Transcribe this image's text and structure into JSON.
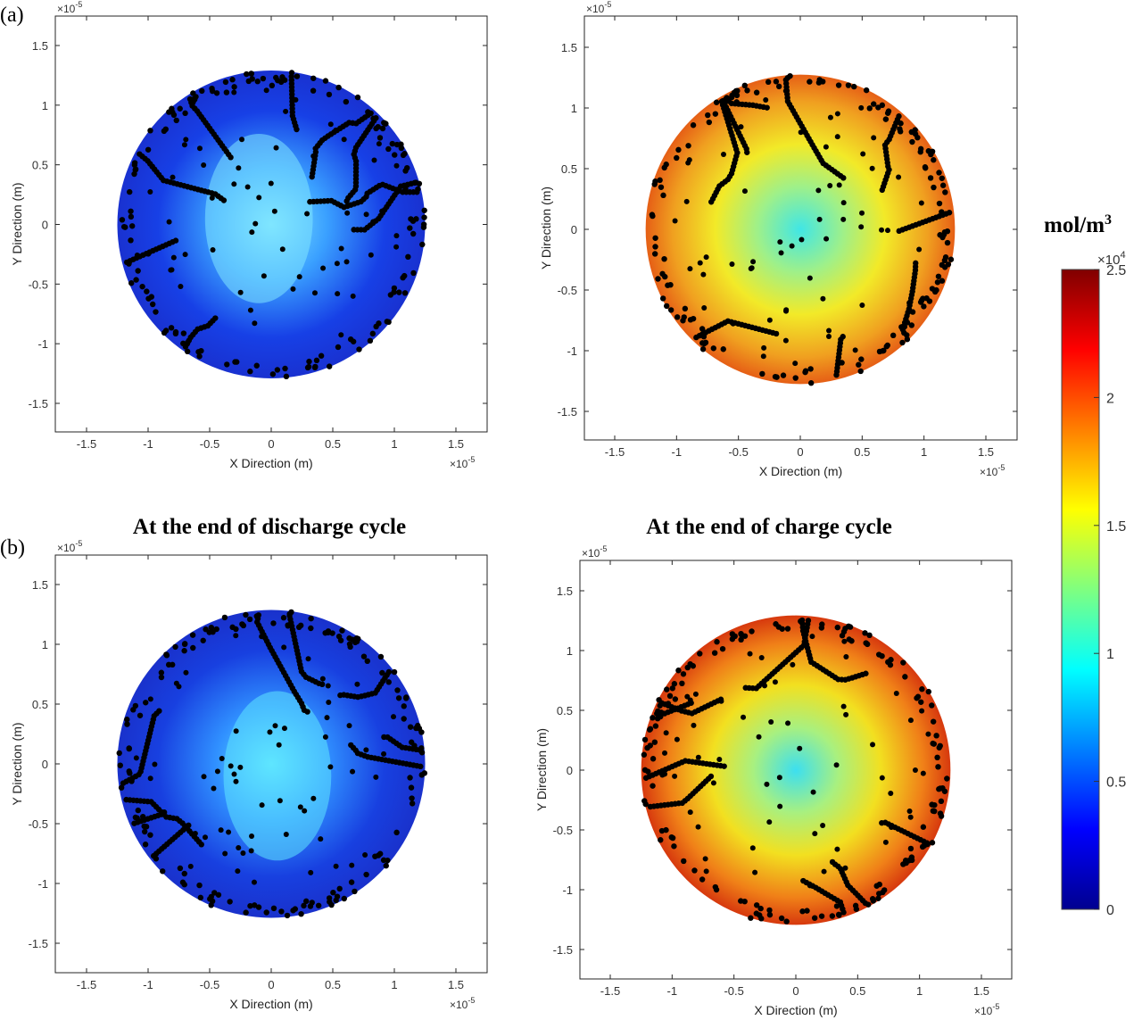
{
  "chart_data": {
    "type": "heatmap",
    "panel_labels": [
      "(a)",
      "(b)"
    ],
    "column_titles": [
      "At the end of discharge cycle",
      "At the end of charge cycle"
    ],
    "xlabel": "X Direction (m)",
    "ylabel": "Y Direction (m)",
    "axis_exponent": "×10",
    "axis_exponent_power": "-5",
    "xlim": [
      -1.75,
      1.75
    ],
    "ylim": [
      -1.75,
      1.75
    ],
    "ticks": [
      -1.5,
      -1,
      -0.5,
      0,
      0.5,
      1,
      1.5
    ],
    "tick_labels": [
      "-1.5",
      "-1",
      "-0.5",
      "0",
      "0.5",
      "1",
      "1.5"
    ],
    "particle_radius": 1.25,
    "panels": [
      {
        "row": "(a)",
        "column": "discharge",
        "edge_value": 1000,
        "center_value": 9000,
        "colors": [
          "#7fe6ff",
          "#3aa0ff",
          "#1740e6",
          "#1a2cc8"
        ]
      },
      {
        "row": "(a)",
        "column": "charge",
        "edge_value": 20000,
        "center_value": 10000,
        "colors": [
          "#40e6e6",
          "#9ef08a",
          "#f2ea28",
          "#f0a020",
          "#e03a10"
        ]
      },
      {
        "row": "(b)",
        "column": "discharge",
        "edge_value": 1000,
        "center_value": 9000,
        "colors": [
          "#5ee6ff",
          "#3090ff",
          "#1840e0",
          "#1a2cc4"
        ]
      },
      {
        "row": "(b)",
        "column": "charge",
        "edge_value": 22000,
        "center_value": 9500,
        "colors": [
          "#3cdff0",
          "#a8f080",
          "#f2e020",
          "#f08018",
          "#c81008"
        ]
      }
    ],
    "colorbar": {
      "title": "mol/m",
      "title_power": "3",
      "multiplier": "×10",
      "multiplier_power": "4",
      "range": [
        0,
        25000
      ],
      "tick_values": [
        0,
        0.5,
        1,
        1.5,
        2,
        2.5
      ],
      "tick_labels": [
        "0",
        "0.5",
        "1",
        "1.5",
        "2",
        "2.5"
      ],
      "colormap": "jet"
    }
  }
}
